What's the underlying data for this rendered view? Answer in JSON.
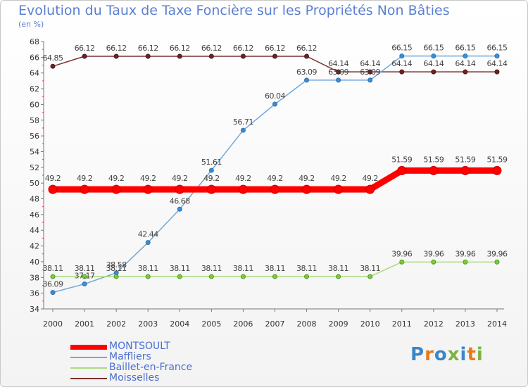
{
  "header": {
    "title": "Evolution du Taux de Taxe Foncière sur les Propriétés Non Bâties",
    "unit": "(en %)"
  },
  "logo": {
    "text": "Proxiti"
  },
  "chart_data": {
    "type": "line",
    "title": "Evolution du Taux de Taxe Foncière sur les Propriétés Non Bâties",
    "ylabel": "(en %)",
    "xlabel": "",
    "ylim": [
      34,
      68
    ],
    "yticks": [
      34,
      36,
      38,
      40,
      42,
      44,
      46,
      48,
      50,
      52,
      54,
      56,
      58,
      60,
      62,
      64,
      66,
      68
    ],
    "x": [
      2000,
      2001,
      2002,
      2003,
      2004,
      2005,
      2006,
      2007,
      2008,
      2009,
      2010,
      2011,
      2012,
      2013,
      2014
    ],
    "grid": false,
    "legend_position": "bottom-left",
    "series": [
      {
        "name": "Moisselles",
        "color": "#7a2f2f",
        "values": [
          64.85,
          66.12,
          66.12,
          66.12,
          66.12,
          66.12,
          66.12,
          66.12,
          66.12,
          64.14,
          64.14,
          64.14,
          64.14,
          64.14,
          64.14
        ],
        "labels": [
          "64.85",
          "66.12",
          "66.12",
          "66.12",
          "66.12",
          "66.12",
          "66.12",
          "66.12",
          "66.12",
          "64.14",
          "64.14",
          "64.14",
          "64.14",
          "64.14",
          "64.14"
        ]
      },
      {
        "name": "Maffliers",
        "color": "#5b9bd5",
        "values": [
          36.09,
          37.17,
          38.58,
          42.44,
          46.68,
          51.61,
          56.71,
          60.04,
          63.09,
          63.09,
          63.09,
          66.15,
          66.15,
          66.15,
          66.15
        ],
        "labels": [
          "36.09",
          "37.17",
          "38.58",
          "42.44",
          "46.68",
          "51.61",
          "56.71",
          "60.04",
          "63.09",
          "63.09",
          "63.09",
          "66.15",
          "66.15",
          "66.15",
          "66.15"
        ]
      },
      {
        "name": "Baillet-en-France",
        "color": "#8fd45a",
        "values": [
          38.11,
          38.11,
          38.11,
          38.11,
          38.11,
          38.11,
          38.11,
          38.11,
          38.11,
          38.11,
          38.11,
          39.96,
          39.96,
          39.96,
          39.96
        ],
        "labels": [
          "38.11",
          "38.11",
          "38.11",
          "38.11",
          "38.11",
          "38.11",
          "38.11",
          "38.11",
          "38.11",
          "38.11",
          "38.11",
          "39.96",
          "39.96",
          "39.96",
          "39.96"
        ]
      },
      {
        "name": "MONTSOULT",
        "color": "#ff0000",
        "values": [
          49.2,
          49.2,
          49.2,
          49.2,
          49.2,
          49.2,
          49.2,
          49.2,
          49.2,
          49.2,
          49.2,
          51.59,
          51.59,
          51.59,
          51.59
        ],
        "labels": [
          "49.2",
          "49.2",
          "49.2",
          "49.2",
          "49.2",
          "49.2",
          "49.2",
          "49.2",
          "49.2",
          "49.2",
          "49.2",
          "51.59",
          "51.59",
          "51.59",
          "51.59"
        ]
      }
    ],
    "legend": [
      "MONTSOULT",
      "Maffliers",
      "Baillet-en-France",
      "Moisselles"
    ]
  }
}
